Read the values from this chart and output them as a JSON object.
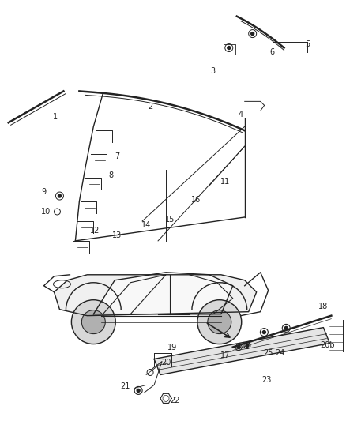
{
  "background_color": "#ffffff",
  "fig_width": 4.38,
  "fig_height": 5.33,
  "dpi": 100,
  "col": "#222222"
}
